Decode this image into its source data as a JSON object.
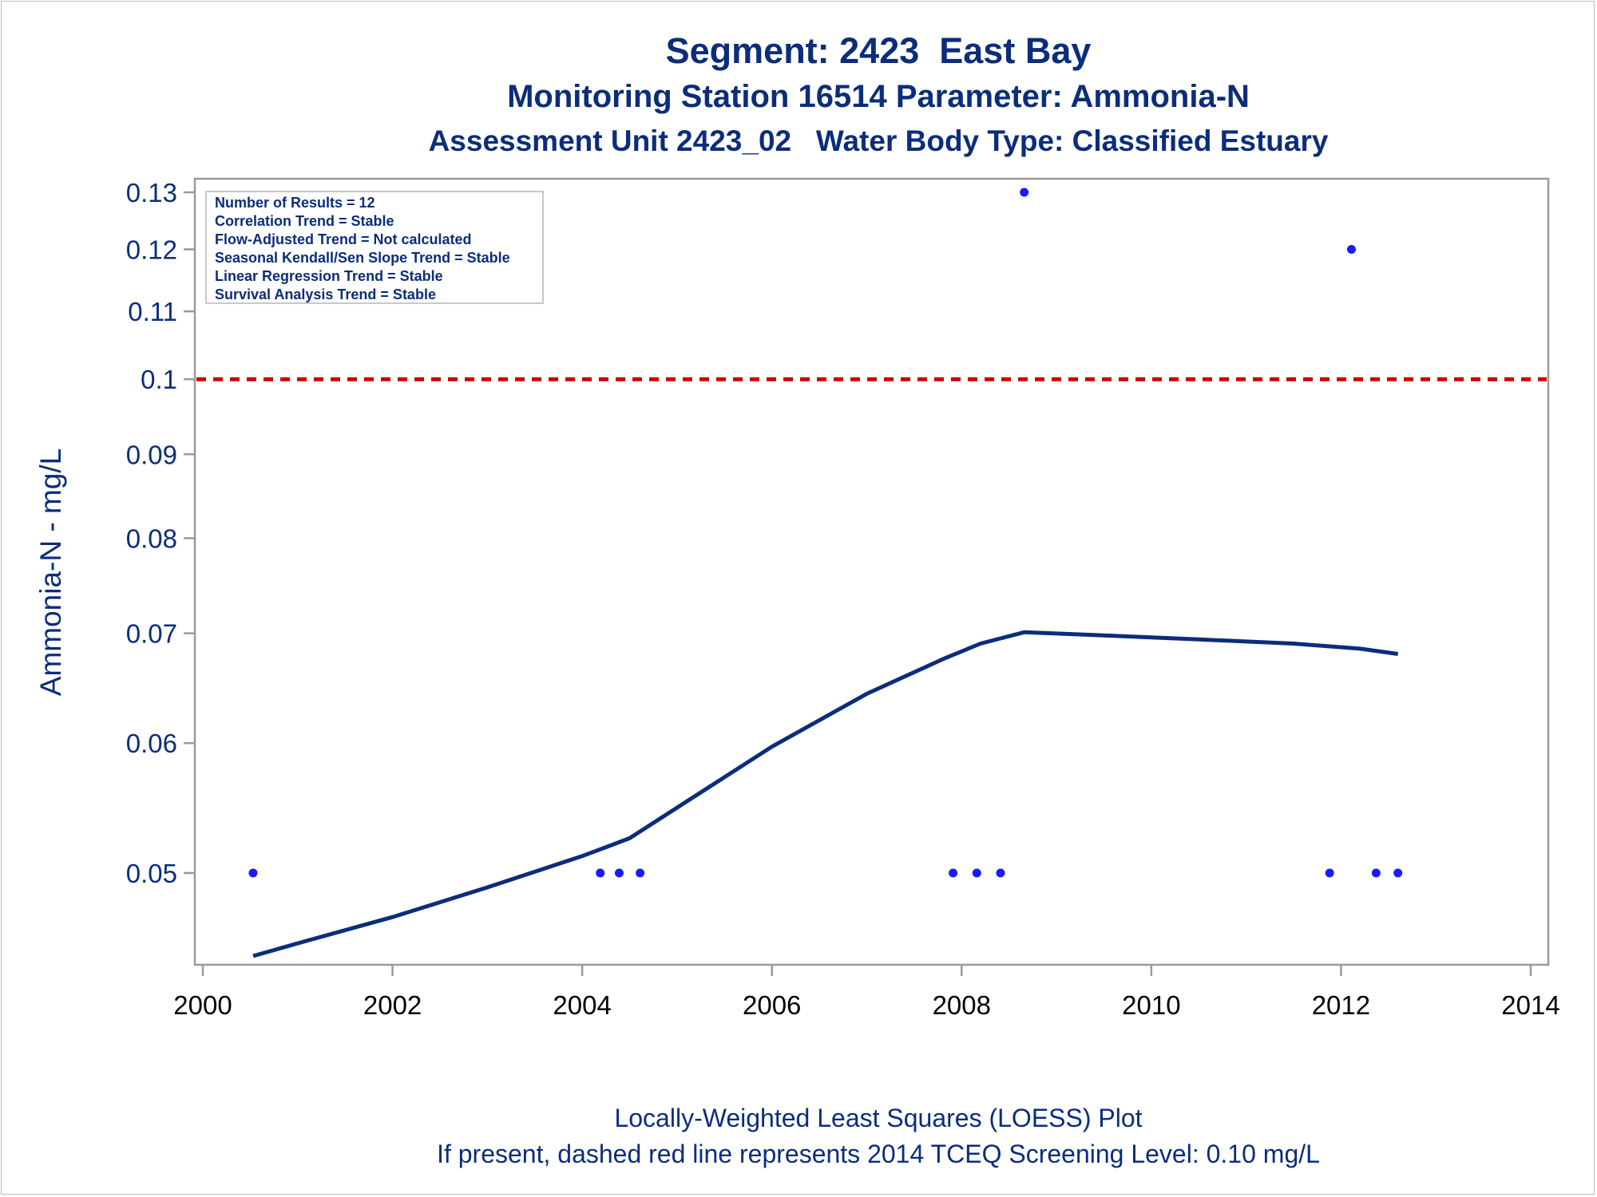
{
  "titles": {
    "line1": "Segment: 2423  East Bay",
    "line2": "Monitoring Station 16514 Parameter: Ammonia-N",
    "line3": "Assessment Unit 2423_02   Water Body Type: Classified Estuary"
  },
  "footnotes": {
    "line1": "Locally-Weighted Least Squares (LOESS) Plot",
    "line2": "If present, dashed red line represents 2014 TCEQ Screening Level: 0.10 mg/L"
  },
  "inset": [
    "Number of Results = 12",
    "Correlation Trend = Stable",
    "Flow-Adjusted Trend = Not calculated",
    "Seasonal Kendall/Sen Slope Trend = Stable",
    "Linear Regression Trend = Stable",
    "Survival Analysis Trend = Stable"
  ],
  "colors": {
    "text": "#0b2d7a",
    "points": "#1a1aff",
    "loess": "#0b2d7a",
    "screening_line": "#cc0000",
    "axis": "#9a9a9a"
  },
  "chart_data": {
    "type": "scatter",
    "ylabel": "Ammonia-N - mg/L",
    "xlabel": "",
    "y_scale": "log",
    "xlim": [
      2000,
      2014
    ],
    "ylim": [
      0.0445,
      0.13
    ],
    "x_ticks": [
      2000,
      2002,
      2004,
      2006,
      2008,
      2010,
      2012,
      2014
    ],
    "y_ticks": [
      0.05,
      0.06,
      0.07,
      0.08,
      0.09,
      0.1,
      0.11,
      0.12,
      0.13
    ],
    "y_tick_labels": [
      "0.05",
      "0.06",
      "0.07",
      "0.08",
      "0.09",
      "0.1",
      "0.11",
      "0.12",
      "0.13"
    ],
    "screening_level": 0.1,
    "points": [
      {
        "x": 2000.53,
        "y": 0.05
      },
      {
        "x": 2004.19,
        "y": 0.05
      },
      {
        "x": 2004.39,
        "y": 0.05
      },
      {
        "x": 2004.61,
        "y": 0.05
      },
      {
        "x": 2007.91,
        "y": 0.05
      },
      {
        "x": 2008.16,
        "y": 0.05
      },
      {
        "x": 2008.41,
        "y": 0.05
      },
      {
        "x": 2008.66,
        "y": 0.13
      },
      {
        "x": 2011.88,
        "y": 0.05
      },
      {
        "x": 2012.11,
        "y": 0.12
      },
      {
        "x": 2012.37,
        "y": 0.05
      },
      {
        "x": 2012.6,
        "y": 0.05
      }
    ],
    "loess": [
      {
        "x": 2000.53,
        "y": 0.0445
      },
      {
        "x": 2001.0,
        "y": 0.0453
      },
      {
        "x": 2002.0,
        "y": 0.047
      },
      {
        "x": 2003.0,
        "y": 0.049
      },
      {
        "x": 2004.0,
        "y": 0.0512
      },
      {
        "x": 2004.5,
        "y": 0.0525
      },
      {
        "x": 2005.0,
        "y": 0.0548
      },
      {
        "x": 2006.0,
        "y": 0.0597
      },
      {
        "x": 2007.0,
        "y": 0.0643
      },
      {
        "x": 2007.8,
        "y": 0.0675
      },
      {
        "x": 2008.2,
        "y": 0.069
      },
      {
        "x": 2008.66,
        "y": 0.0701
      },
      {
        "x": 2009.5,
        "y": 0.0698
      },
      {
        "x": 2010.5,
        "y": 0.0694
      },
      {
        "x": 2011.5,
        "y": 0.069
      },
      {
        "x": 2012.2,
        "y": 0.0685
      },
      {
        "x": 2012.6,
        "y": 0.068
      }
    ]
  }
}
